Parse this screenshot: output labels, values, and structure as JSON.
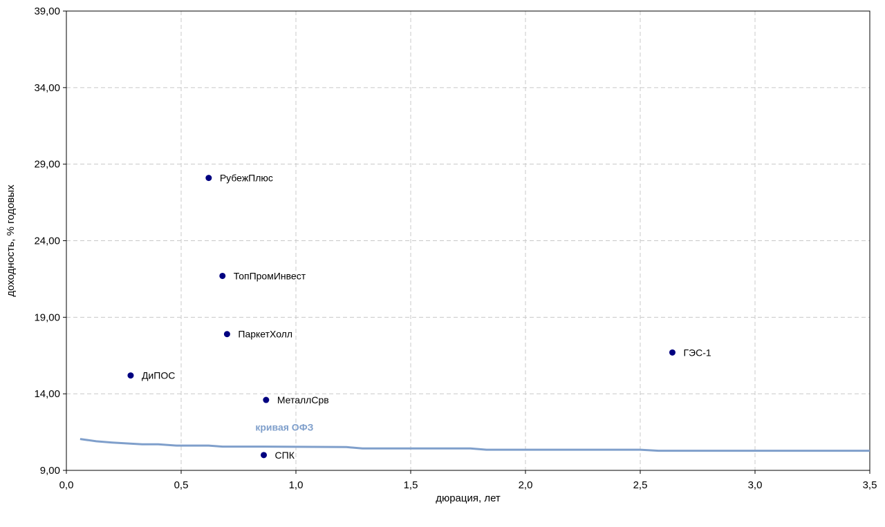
{
  "chart_data": {
    "type": "scatter",
    "title": "",
    "xlabel": "дюрация, лет",
    "ylabel": "доходность, % годовых",
    "xlim": [
      0,
      3.5
    ],
    "ylim": [
      9,
      39
    ],
    "x_ticks": [
      0,
      0.5,
      1.0,
      1.5,
      2.0,
      2.5,
      3.0,
      3.5
    ],
    "x_tick_labels": [
      "0,0",
      "0,5",
      "1,0",
      "1,5",
      "2,0",
      "2,5",
      "3,0",
      "3,5"
    ],
    "y_ticks": [
      9,
      14,
      19,
      24,
      29,
      34,
      39
    ],
    "y_tick_labels": [
      "9,00",
      "14,00",
      "19,00",
      "24,00",
      "29,00",
      "34,00",
      "39,00"
    ],
    "grid": true,
    "points": [
      {
        "label": "РубежПлюс",
        "x": 0.62,
        "y": 28.1
      },
      {
        "label": "ТопПромИнвест",
        "x": 0.68,
        "y": 21.7
      },
      {
        "label": "ПаркетХолл",
        "x": 0.7,
        "y": 17.9
      },
      {
        "label": "ДиПОС",
        "x": 0.28,
        "y": 15.2
      },
      {
        "label": "МеталлСрв",
        "x": 0.87,
        "y": 13.6
      },
      {
        "label": "СПК",
        "x": 0.86,
        "y": 10.0
      },
      {
        "label": "ГЭС-1",
        "x": 2.64,
        "y": 16.7
      }
    ],
    "point_color": "#000080",
    "curve": {
      "name": "кривая ОФЗ",
      "color": "#7f9fcb",
      "x": [
        0.06,
        0.13,
        0.2,
        0.33,
        0.4,
        0.48,
        0.62,
        0.68,
        0.82,
        1.22,
        1.29,
        1.76,
        1.83,
        2.5,
        2.58,
        3.5
      ],
      "y": [
        11.05,
        10.9,
        10.82,
        10.7,
        10.7,
        10.62,
        10.62,
        10.55,
        10.55,
        10.52,
        10.43,
        10.43,
        10.35,
        10.35,
        10.28,
        10.28
      ]
    }
  }
}
